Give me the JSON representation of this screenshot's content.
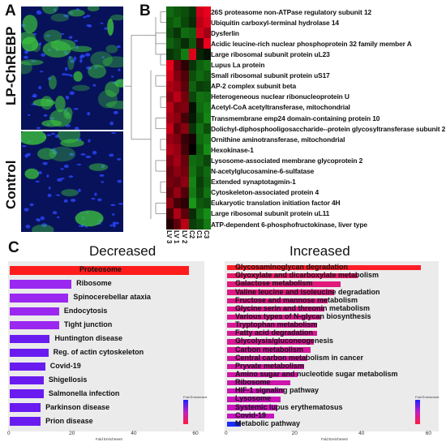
{
  "panels": {
    "a": "A",
    "b": "B",
    "c": "C"
  },
  "micrographs": {
    "top_label": "LP-ChREBP",
    "bottom_label": "Control"
  },
  "heatmap": {
    "columns": [
      "LV 3",
      "LV 1",
      "LV 2",
      "C2",
      "C1",
      "C3"
    ],
    "genes": [
      "26S proteasome non-ATPase regulatory subunit 12",
      "Ubiquitin carboxyl-terminal hydrolase 14",
      "Dysferlin",
      "Acidic leucine-rich nuclear phosphoprotein 32 family member A",
      "Large ribosomal subunit protein uL23",
      "Lupus La protein",
      "Small ribosomal subunit protein uS17",
      "AP-2 complex subunit beta",
      "Heterogeneous nuclear ribonucleoprotein U",
      "Acetyl-CoA acetyltransferase, mitochondrial",
      "Transmembrane emp24 domain-containing protein 10",
      "Dolichyl-diphosphooligosaccharide--protein glycosyltransferase subunit 2",
      "Ornithine aminotransferase, mitochondrial",
      "Hexokinase-1",
      "Lysosome-associated membrane glycoprotein 2",
      "N-acetylglucosamine-6-sulfatase",
      "Extended synaptotagmin-1",
      "Cytoskeleton-associated protein 4",
      "Eukaryotic translation initiation factor 4H",
      "Large ribosomal subunit protein uL11",
      "ATP-dependent 6-phosphofructokinase, liver type"
    ],
    "values": [
      [
        -1.2,
        -1.0,
        -0.9,
        -0.6,
        1.8,
        2.0
      ],
      [
        -1.0,
        -1.2,
        -0.8,
        -0.5,
        1.6,
        1.9
      ],
      [
        -0.9,
        -0.6,
        -1.2,
        -1.1,
        1.8,
        1.4
      ],
      [
        -1.1,
        -0.9,
        -0.5,
        -1.0,
        0.6,
        2.1
      ],
      [
        -0.6,
        -0.8,
        -1.4,
        1.9,
        -0.4,
        -0.2
      ],
      [
        2.0,
        0.9,
        0.4,
        -0.6,
        -1.1,
        -1.3
      ],
      [
        1.8,
        1.1,
        0.7,
        -0.9,
        -1.2,
        -1.0
      ],
      [
        1.5,
        1.3,
        0.8,
        -1.1,
        -0.7,
        -0.8
      ],
      [
        1.2,
        1.6,
        1.0,
        -0.8,
        -1.3,
        -1.2
      ],
      [
        1.6,
        1.0,
        1.1,
        -0.2,
        -1.2,
        -1.4
      ],
      [
        1.4,
        1.2,
        0.6,
        -0.3,
        -1.0,
        -1.5
      ],
      [
        1.7,
        0.8,
        1.2,
        -0.6,
        -1.3,
        -0.9
      ],
      [
        1.3,
        1.1,
        0.5,
        0.2,
        -1.2,
        -1.4
      ],
      [
        1.5,
        1.3,
        0.6,
        0.0,
        -1.0,
        -1.6
      ],
      [
        1.1,
        1.4,
        0.9,
        -1.2,
        -1.1,
        -0.8
      ],
      [
        0.9,
        1.2,
        1.0,
        -1.3,
        -0.9,
        -1.2
      ],
      [
        1.0,
        0.9,
        1.2,
        -1.5,
        -0.7,
        -1.1
      ],
      [
        0.8,
        1.3,
        0.7,
        -1.4,
        -0.8,
        -1.3
      ],
      [
        1.2,
        0.6,
        0.4,
        -1.7,
        -1.0,
        -0.9
      ],
      [
        0.6,
        1.5,
        0.8,
        -0.5,
        -1.2,
        -1.6
      ],
      [
        0.3,
        0.8,
        1.6,
        -0.7,
        -0.9,
        -1.4
      ]
    ],
    "colors": {
      "high": "#e8001c",
      "mid": "#000000",
      "low": "#1bb01b"
    }
  },
  "decreased": {
    "title": "Decreased",
    "x_title": "Fold Enrichment",
    "x_ticks": [
      "0",
      "20",
      "40",
      "60"
    ],
    "xlim": [
      0,
      62
    ],
    "legend_title": "Fold Enrichment",
    "pathways": [
      "Proteosome",
      "Ribosome",
      "Spinocerebellar ataxia",
      "Endocytosis",
      "Tight junction",
      "Huntington disease",
      "Reg. of actin cytoskeleton",
      "Covid-19",
      "Shigellosis",
      "Salmonella infection",
      "Parkinson disease",
      "Prion disease"
    ],
    "values": [
      58,
      20,
      19,
      16,
      16,
      13,
      12.5,
      11.5,
      11,
      11,
      10,
      10
    ]
  },
  "increased": {
    "title": "Increased",
    "x_title": "Fold Enrichment",
    "x_ticks": [
      "0",
      "20",
      "40",
      "60"
    ],
    "xlim": [
      0,
      62
    ],
    "legend_title": "Fold Enrichment",
    "pathways": [
      "Glycosaminoglycan degradation",
      "Glyoxylate and dicarboxylate metabolism",
      "Galactose metabolism",
      "Valine leucine and isoleucine degradation",
      "Fructose and mannose metabolism",
      "Glycine serin and threonin metabolism",
      "Various types of N-glycan biosynthesis",
      "Tryptophan metabolism",
      "Fatty acid degradation",
      "Glycolysis/gluconeogenesis",
      "Carbon metabolism",
      "Central carbon metabolism in cancer",
      "Pryvate metabolism",
      "Amino sugar and nucleotide sugar metabolism",
      "Ribosome",
      "HIF-1 signaling pathway",
      "Lysosome",
      "Systemic lupus erythematosus",
      "Covid-19",
      "Metabolic pathway"
    ],
    "values": [
      58,
      39,
      34,
      32,
      30,
      29,
      28,
      27,
      27,
      26,
      25,
      24,
      23,
      21,
      19,
      17,
      16,
      15,
      14,
      4
    ]
  }
}
